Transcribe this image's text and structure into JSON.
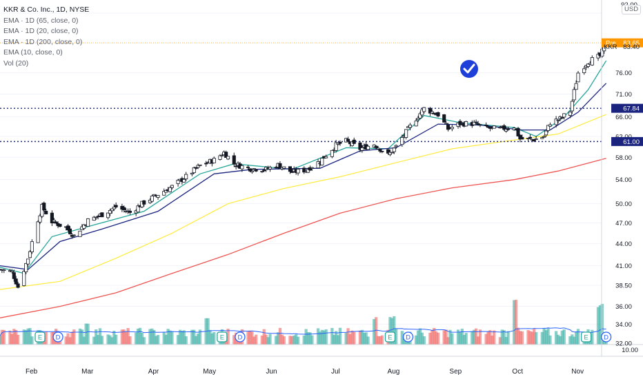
{
  "legend": {
    "title": "KKR & Co. Inc., 1D, NYSE",
    "lines": [
      "EMA · 1D (65, close, 0)",
      "EMA · 1D (20, close, 0)",
      "EMA · 1D (200, close, 0)",
      "EMA (10, close, 0)",
      "Vol (20)"
    ]
  },
  "currency": "USD",
  "axis": {
    "price_ticks": [
      "92.00",
      "76.00",
      "71.00",
      "66.00",
      "62.00",
      "58.00",
      "54.00",
      "50.00",
      "47.00",
      "44.00",
      "41.00",
      "38.50",
      "36.00",
      "34.00",
      "32.00"
    ],
    "volume_tick": "10.00",
    "months": [
      "Feb",
      "Mar",
      "Apr",
      "May",
      "Jun",
      "Jul",
      "Aug",
      "Sep",
      "Oct",
      "Nov"
    ]
  },
  "price_tags": {
    "pre_label": "Pre",
    "pre_value": "83.65",
    "symbol": "KKR",
    "last_value": "83.40",
    "level_high": "67.84",
    "level_low": "61.00"
  },
  "event_markers": [
    "E",
    "D",
    "E",
    "D",
    "E",
    "D",
    "E",
    "D"
  ],
  "colors": {
    "up": "#26a69a",
    "down": "#ef5350",
    "ema10": "#26a69a",
    "ema20": "#1a237e",
    "ema65": "#ffeb3b",
    "ema200": "#ef5350",
    "vol_ma": "#2962ff",
    "pre_tag": "#ff9800",
    "level": "#1a237e",
    "badge": "#1e40d8"
  },
  "chart_data": {
    "type": "candlestick",
    "title": "KKR & Co. Inc., 1D, NYSE",
    "x_range": [
      "2023-01-18",
      "2023-11-03"
    ],
    "y_scale": "log",
    "y_range": [
      32,
      92
    ],
    "horizontal_levels": [
      67.84,
      61.0
    ],
    "last_price": 83.4,
    "premarket_price": 83.65,
    "series": [
      {
        "name": "EMA · 1D (65, close, 0)"
      },
      {
        "name": "EMA · 1D (20, close, 0)"
      },
      {
        "name": "EMA · 1D (200, close, 0)"
      },
      {
        "name": "EMA (10, close, 0)"
      },
      {
        "name": "Vol (20)"
      }
    ],
    "close_path": [
      [
        "2023-01-18",
        40.5
      ],
      [
        "2023-01-24",
        40.2
      ],
      [
        "2023-01-27",
        38.3
      ],
      [
        "2023-02-01",
        42.0
      ],
      [
        "2023-02-06",
        47.5
      ],
      [
        "2023-02-08",
        49.5
      ],
      [
        "2023-02-13",
        47.2
      ],
      [
        "2023-02-20",
        46.3
      ],
      [
        "2023-02-24",
        45.1
      ],
      [
        "2023-03-03",
        47.4
      ],
      [
        "2023-03-10",
        48.3
      ],
      [
        "2023-03-17",
        49.5
      ],
      [
        "2023-03-24",
        48.6
      ],
      [
        "2023-03-31",
        50.2
      ],
      [
        "2023-04-07",
        51.5
      ],
      [
        "2023-04-14",
        52.8
      ],
      [
        "2023-04-21",
        54.5
      ],
      [
        "2023-04-28",
        56.5
      ],
      [
        "2023-05-05",
        57.5
      ],
      [
        "2023-05-10",
        58.9
      ],
      [
        "2023-05-15",
        56.8
      ],
      [
        "2023-05-22",
        56.0
      ],
      [
        "2023-05-31",
        55.8
      ],
      [
        "2023-06-06",
        56.6
      ],
      [
        "2023-06-13",
        55.3
      ],
      [
        "2023-06-20",
        55.7
      ],
      [
        "2023-06-27",
        57.3
      ],
      [
        "2023-07-05",
        60.3
      ],
      [
        "2023-07-10",
        61.1
      ],
      [
        "2023-07-17",
        59.6
      ],
      [
        "2023-07-24",
        60.5
      ],
      [
        "2023-07-31",
        58.4
      ],
      [
        "2023-08-04",
        60.0
      ],
      [
        "2023-08-11",
        64.0
      ],
      [
        "2023-08-18",
        67.8
      ],
      [
        "2023-08-25",
        66.5
      ],
      [
        "2023-08-30",
        63.5
      ],
      [
        "2023-09-05",
        64.6
      ],
      [
        "2023-09-12",
        64.6
      ],
      [
        "2023-09-18",
        63.7
      ],
      [
        "2023-09-25",
        63.5
      ],
      [
        "2023-10-02",
        64.0
      ],
      [
        "2023-10-05",
        61.5
      ],
      [
        "2023-10-12",
        61.4
      ],
      [
        "2023-10-17",
        62.0
      ],
      [
        "2023-10-20",
        64.8
      ],
      [
        "2023-10-25",
        65.6
      ],
      [
        "2023-10-30",
        67.2
      ],
      [
        "2023-11-03",
        76.0
      ],
      [
        "2023-11-08",
        78.8
      ],
      [
        "2023-11-14",
        80.2
      ],
      [
        "2023-11-17",
        83.4
      ]
    ],
    "ema_paths": {
      "ema10": [
        [
          "2023-01-18",
          40.8
        ],
        [
          "2023-01-30",
          40.0
        ],
        [
          "2023-02-13",
          45.0
        ],
        [
          "2023-03-01",
          46.3
        ],
        [
          "2023-03-31",
          48.8
        ],
        [
          "2023-04-28",
          55.0
        ],
        [
          "2023-05-15",
          56.8
        ],
        [
          "2023-06-13",
          55.8
        ],
        [
          "2023-07-10",
          59.8
        ],
        [
          "2023-07-31",
          59.6
        ],
        [
          "2023-08-18",
          66.3
        ],
        [
          "2023-09-05",
          64.8
        ],
        [
          "2023-10-02",
          63.8
        ],
        [
          "2023-10-13",
          62.0
        ],
        [
          "2023-10-27",
          66.0
        ],
        [
          "2023-11-08",
          72.0
        ],
        [
          "2023-11-17",
          79.0
        ]
      ],
      "ema20": [
        [
          "2023-01-18",
          41.0
        ],
        [
          "2023-02-01",
          40.5
        ],
        [
          "2023-02-17",
          44.3
        ],
        [
          "2023-03-10",
          46.1
        ],
        [
          "2023-04-07",
          48.8
        ],
        [
          "2023-05-05",
          55.0
        ],
        [
          "2023-05-24",
          55.8
        ],
        [
          "2023-06-27",
          56.0
        ],
        [
          "2023-07-17",
          59.2
        ],
        [
          "2023-08-04",
          59.8
        ],
        [
          "2023-08-25",
          64.5
        ],
        [
          "2023-09-15",
          64.3
        ],
        [
          "2023-10-06",
          63.3
        ],
        [
          "2023-10-20",
          63.3
        ],
        [
          "2023-11-03",
          67.0
        ],
        [
          "2023-11-17",
          73.5
        ]
      ],
      "ema65": [
        [
          "2023-01-18",
          38.0
        ],
        [
          "2023-02-17",
          39.0
        ],
        [
          "2023-03-17",
          42.0
        ],
        [
          "2023-04-14",
          45.5
        ],
        [
          "2023-05-12",
          50.0
        ],
        [
          "2023-06-09",
          52.5
        ],
        [
          "2023-07-07",
          54.5
        ],
        [
          "2023-08-04",
          57.0
        ],
        [
          "2023-09-01",
          59.6
        ],
        [
          "2023-10-02",
          61.3
        ],
        [
          "2023-10-24",
          62.5
        ],
        [
          "2023-11-17",
          66.5
        ]
      ],
      "ema200": [
        [
          "2023-01-18",
          34.7
        ],
        [
          "2023-02-17",
          36.0
        ],
        [
          "2023-03-17",
          37.6
        ],
        [
          "2023-04-14",
          40.0
        ],
        [
          "2023-05-12",
          42.5
        ],
        [
          "2023-06-09",
          45.5
        ],
        [
          "2023-07-07",
          48.5
        ],
        [
          "2023-08-04",
          50.8
        ],
        [
          "2023-09-01",
          52.6
        ],
        [
          "2023-10-02",
          54.0
        ],
        [
          "2023-10-24",
          55.5
        ],
        [
          "2023-11-17",
          57.8
        ]
      ]
    },
    "volume_spikes": [
      {
        "date": "2023-03-03",
        "relative": 1.9
      },
      {
        "date": "2023-05-01",
        "relative": 2.2
      },
      {
        "date": "2023-07-24",
        "relative": 2.3
      },
      {
        "date": "2023-08-02",
        "relative": 2.4
      },
      {
        "date": "2023-10-02",
        "relative": 4.0
      },
      {
        "date": "2023-11-14",
        "relative": 3.4
      }
    ],
    "event_dates": [
      {
        "type": "E",
        "date": "2023-02-07"
      },
      {
        "type": "D",
        "date": "2023-02-16"
      },
      {
        "type": "E",
        "date": "2023-05-09"
      },
      {
        "type": "D",
        "date": "2023-05-18"
      },
      {
        "type": "E",
        "date": "2023-08-01"
      },
      {
        "type": "D",
        "date": "2023-08-10"
      },
      {
        "type": "E",
        "date": "2023-11-07"
      },
      {
        "type": "D",
        "date": "2023-11-17"
      }
    ]
  }
}
